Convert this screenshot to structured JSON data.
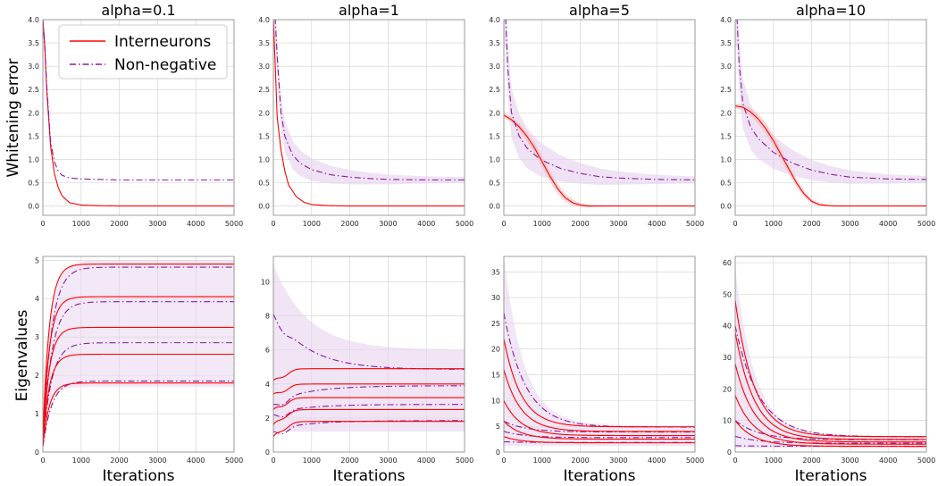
{
  "legend": {
    "placement": "top-right of first panel",
    "entries": [
      {
        "label": "Interneurons",
        "color": "#ff0000",
        "style": "solid"
      },
      {
        "label": "Non-negative",
        "color": "#8b1a9b",
        "style": "dashdot"
      }
    ]
  },
  "colors": {
    "interneurons": "#ff0000",
    "nonnegative": "#8b1a9b",
    "band": "#e6d2ee",
    "grid": "#d0d0d0"
  },
  "row_labels": {
    "top": "Whitening error",
    "bottom": "Eigenvalues"
  },
  "xlabel": "Iterations",
  "chart_data": [
    {
      "type": "line",
      "title": "alpha=0.1",
      "ylabel": "Whitening error",
      "xlim": [
        0,
        5000
      ],
      "ylim": [
        -0.2,
        4.0
      ],
      "grid": true,
      "xticks": [
        "0",
        "1000",
        "2000",
        "3000",
        "4000",
        "5000"
      ],
      "yticks": [
        "0.0",
        "0.5",
        "1.0",
        "1.5",
        "2.0",
        "2.5",
        "3.0",
        "3.5",
        "4.0"
      ],
      "series": [
        {
          "name": "Interneurons",
          "x": [
            0,
            50,
            100,
            200,
            300,
            400,
            500,
            700,
            1000,
            1500,
            2000,
            3000,
            5000
          ],
          "y": [
            4.0,
            3.4,
            2.5,
            1.3,
            0.7,
            0.4,
            0.22,
            0.07,
            0.02,
            0.005,
            0.0,
            0.0,
            0.0
          ]
        },
        {
          "name": "Non-negative",
          "x": [
            0,
            50,
            100,
            200,
            300,
            400,
            500,
            700,
            1000,
            1500,
            2000,
            3000,
            5000
          ],
          "y": [
            4.0,
            3.5,
            2.6,
            1.4,
            0.95,
            0.75,
            0.66,
            0.6,
            0.58,
            0.57,
            0.56,
            0.56,
            0.56
          ]
        }
      ]
    },
    {
      "type": "line",
      "title": "alpha=1",
      "xlim": [
        0,
        5000
      ],
      "ylim": [
        -0.2,
        4.0
      ],
      "grid": true,
      "xticks": [
        "0",
        "1000",
        "2000",
        "3000",
        "4000",
        "5000"
      ],
      "yticks": [
        "0.0",
        "0.5",
        "1.0",
        "1.5",
        "2.0",
        "2.5",
        "3.0",
        "3.5",
        "4.0"
      ],
      "series": [
        {
          "name": "Interneurons",
          "x": [
            0,
            50,
            100,
            200,
            300,
            400,
            600,
            800,
            1000,
            1500,
            2000,
            3000,
            5000
          ],
          "y": [
            4.0,
            3.0,
            1.9,
            1.2,
            0.75,
            0.45,
            0.2,
            0.08,
            0.03,
            0.005,
            0.0,
            0.0,
            0.0
          ]
        },
        {
          "name": "Non-negative",
          "x": [
            0,
            50,
            100,
            200,
            300,
            500,
            700,
            1000,
            1500,
            2000,
            2500,
            3000,
            4000,
            5000
          ],
          "y": [
            4.0,
            4.0,
            3.2,
            2.0,
            1.5,
            1.1,
            0.92,
            0.78,
            0.67,
            0.62,
            0.59,
            0.57,
            0.56,
            0.56
          ]
        }
      ]
    },
    {
      "type": "line",
      "title": "alpha=5",
      "xlim": [
        0,
        5000
      ],
      "ylim": [
        -0.2,
        4.0
      ],
      "grid": true,
      "xticks": [
        "0",
        "1000",
        "2000",
        "3000",
        "4000",
        "5000"
      ],
      "yticks": [
        "0.0",
        "0.5",
        "1.0",
        "1.5",
        "2.0",
        "2.5",
        "3.0",
        "3.5",
        "4.0"
      ],
      "series": [
        {
          "name": "Interneurons",
          "x": [
            0,
            200,
            400,
            600,
            800,
            1000,
            1200,
            1400,
            1600,
            1800,
            2000,
            2200,
            2500,
            3000,
            5000
          ],
          "y": [
            1.95,
            1.85,
            1.7,
            1.5,
            1.25,
            0.95,
            0.65,
            0.38,
            0.18,
            0.07,
            0.02,
            0.0,
            0.0,
            0.0,
            0.0
          ]
        },
        {
          "name": "Non-negative",
          "x": [
            0,
            50,
            100,
            200,
            400,
            600,
            800,
            1000,
            1500,
            2000,
            2500,
            3000,
            4000,
            5000
          ],
          "y": [
            4.0,
            4.0,
            3.0,
            2.0,
            1.5,
            1.25,
            1.1,
            0.98,
            0.8,
            0.7,
            0.63,
            0.6,
            0.57,
            0.56
          ]
        }
      ]
    },
    {
      "type": "line",
      "title": "alpha=10",
      "xlim": [
        0,
        5000
      ],
      "ylim": [
        -0.2,
        4.0
      ],
      "grid": true,
      "xticks": [
        "0",
        "1000",
        "2000",
        "3000",
        "4000",
        "5000"
      ],
      "yticks": [
        "0.0",
        "0.5",
        "1.0",
        "1.5",
        "2.0",
        "2.5",
        "3.0",
        "3.5",
        "4.0"
      ],
      "series": [
        {
          "name": "Interneurons",
          "x": [
            0,
            200,
            400,
            600,
            800,
            1000,
            1200,
            1400,
            1600,
            1800,
            2000,
            2200,
            2400,
            2600,
            3000,
            5000
          ],
          "y": [
            2.15,
            2.12,
            2.02,
            1.87,
            1.66,
            1.4,
            1.1,
            0.8,
            0.5,
            0.26,
            0.1,
            0.03,
            0.01,
            0.0,
            0.0,
            0.0
          ]
        },
        {
          "name": "Non-negative",
          "x": [
            0,
            50,
            100,
            200,
            400,
            600,
            800,
            1000,
            1500,
            2000,
            2500,
            3000,
            4000,
            5000
          ],
          "y": [
            4.0,
            4.0,
            3.1,
            2.2,
            1.7,
            1.45,
            1.3,
            1.15,
            0.92,
            0.77,
            0.68,
            0.62,
            0.58,
            0.57
          ]
        }
      ]
    },
    {
      "type": "line",
      "ylabel": "Eigenvalues",
      "xlabel": "Iterations",
      "xlim": [
        0,
        5000
      ],
      "ylim": [
        0,
        5.1
      ],
      "grid": true,
      "xticks": [
        "0",
        "1000",
        "2000",
        "3000",
        "4000",
        "5000"
      ],
      "yticks": [
        "0",
        "1",
        "2",
        "3",
        "4",
        "5"
      ],
      "interneurons_finals": [
        4.9,
        4.05,
        3.25,
        2.55,
        1.8
      ],
      "nonnegative_finals": [
        4.82,
        3.92,
        2.85,
        1.85
      ],
      "series": [
        {
          "name": "Interneurons",
          "final_values": [
            4.9,
            4.05,
            3.25,
            2.55,
            1.8
          ]
        },
        {
          "name": "Non-negative",
          "final_values": [
            4.82,
            3.92,
            2.85,
            1.85
          ]
        }
      ]
    },
    {
      "type": "line",
      "xlabel": "Iterations",
      "xlim": [
        0,
        5000
      ],
      "ylim": [
        0,
        11.5
      ],
      "grid": true,
      "xticks": [
        "0",
        "1000",
        "2000",
        "3000",
        "4000",
        "5000"
      ],
      "yticks": [
        "0",
        "2",
        "4",
        "6",
        "8",
        "10"
      ],
      "interneurons_finals": [
        4.9,
        4.0,
        3.2,
        2.5,
        1.8
      ],
      "nonnegative_finals": [
        4.85,
        3.9,
        2.8,
        1.85
      ],
      "series": [
        {
          "name": "Interneurons",
          "final_values": [
            4.9,
            4.0,
            3.2,
            2.5,
            1.8
          ]
        },
        {
          "name": "Non-negative",
          "final_values": [
            4.85,
            3.9,
            2.8,
            1.85
          ]
        }
      ]
    },
    {
      "type": "line",
      "xlabel": "Iterations",
      "xlim": [
        0,
        5000
      ],
      "ylim": [
        0,
        38
      ],
      "grid": true,
      "xticks": [
        "0",
        "1000",
        "2000",
        "3000",
        "4000",
        "5000"
      ],
      "yticks": [
        "0",
        "5",
        "10",
        "15",
        "20",
        "25",
        "30",
        "35"
      ],
      "interneurons_finals": [
        4.9,
        4.0,
        3.2,
        2.5,
        1.8
      ],
      "nonnegative_finals": [
        4.85,
        3.9,
        2.8,
        1.85
      ],
      "series": [
        {
          "name": "Interneurons",
          "initial_values": [
            22,
            16,
            10,
            6,
            3
          ],
          "final_values": [
            4.9,
            4.0,
            3.2,
            2.5,
            1.8
          ]
        },
        {
          "name": "Non-negative",
          "initial_values": [
            27,
            6,
            4,
            2
          ],
          "final_values": [
            4.85,
            3.9,
            2.8,
            1.85
          ]
        }
      ]
    },
    {
      "type": "line",
      "xlabel": "Iterations",
      "xlim": [
        0,
        5000
      ],
      "ylim": [
        0,
        62
      ],
      "grid": true,
      "xticks": [
        "0",
        "1000",
        "2000",
        "3000",
        "4000",
        "5000"
      ],
      "yticks": [
        "0",
        "10",
        "20",
        "30",
        "40",
        "50",
        "60"
      ],
      "interneurons_finals": [
        4.9,
        4.0,
        3.2,
        2.5,
        1.8
      ],
      "nonnegative_finals": [
        4.85,
        3.9,
        2.8,
        1.85
      ],
      "series": [
        {
          "name": "Interneurons",
          "initial_values": [
            48,
            38,
            28,
            18,
            10
          ],
          "final_values": [
            4.9,
            4.0,
            3.2,
            2.5,
            1.8
          ]
        },
        {
          "name": "Non-negative",
          "initial_values": [
            40,
            10,
            5,
            2
          ],
          "final_values": [
            4.85,
            3.9,
            2.8,
            1.85
          ]
        }
      ]
    }
  ]
}
